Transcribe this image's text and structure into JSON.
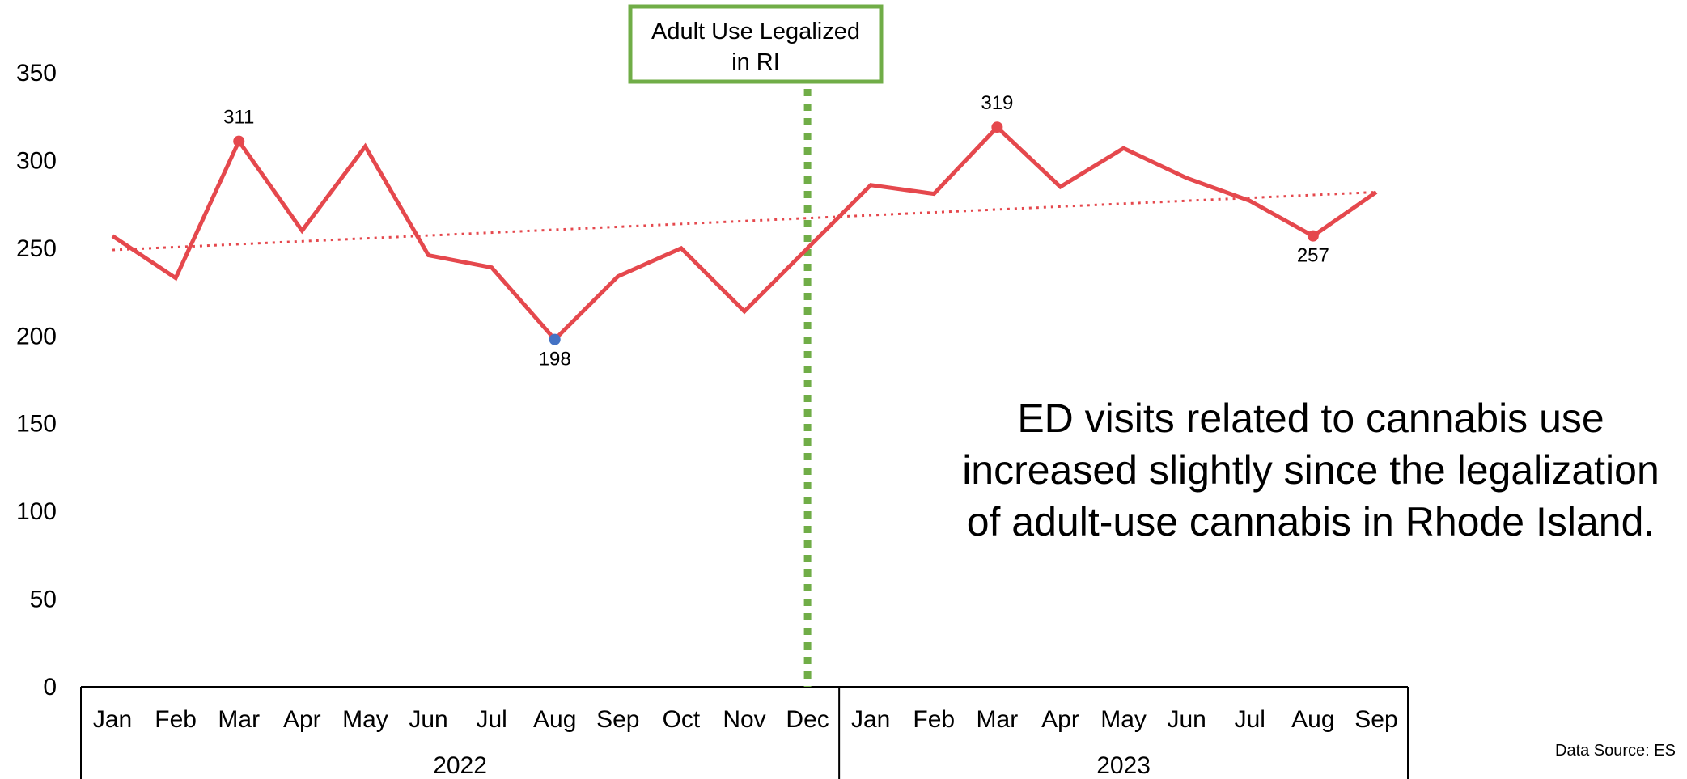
{
  "chart_data": {
    "type": "line",
    "ylim": [
      0,
      350
    ],
    "y_ticks": [
      0,
      50,
      100,
      150,
      200,
      250,
      300,
      350
    ],
    "categories": [
      "Jan",
      "Feb",
      "Mar",
      "Apr",
      "May",
      "Jun",
      "Jul",
      "Aug",
      "Sep",
      "Oct",
      "Nov",
      "Dec",
      "Jan",
      "Feb",
      "Mar",
      "Apr",
      "May",
      "Jun",
      "Jul",
      "Aug",
      "Sep"
    ],
    "year_groups": [
      {
        "label": "2022",
        "start": 0,
        "end": 11
      },
      {
        "label": "2023",
        "start": 12,
        "end": 20
      }
    ],
    "series": [
      {
        "values": [
          257,
          233,
          311,
          260,
          308,
          246,
          239,
          198,
          234,
          250,
          214,
          250,
          286,
          281,
          319,
          285,
          307,
          290,
          277,
          257,
          282
        ],
        "color": "#e5484d"
      }
    ],
    "trendline": {
      "start": 249,
      "end": 282,
      "style": "dotted",
      "color": "#e5484d"
    },
    "highlighted_points": [
      {
        "index": 2,
        "label": "311",
        "color": "#e5484d",
        "label_pos": "above"
      },
      {
        "index": 7,
        "label": "198",
        "color": "#4472c4",
        "label_pos": "below"
      },
      {
        "index": 14,
        "label": "319",
        "color": "#e5484d",
        "label_pos": "above"
      },
      {
        "index": 19,
        "label": "257",
        "color": "#e5484d",
        "label_pos": "below"
      }
    ],
    "event_marker": {
      "index": 11,
      "label_lines": [
        "Adult Use Legalized",
        "in RI"
      ],
      "color": "#70ad47"
    },
    "headline_lines": [
      "ED visits related to cannabis use",
      "increased slightly since the legalization",
      "of adult-use cannabis in Rhode Island."
    ],
    "source": "Data Source: ES"
  }
}
